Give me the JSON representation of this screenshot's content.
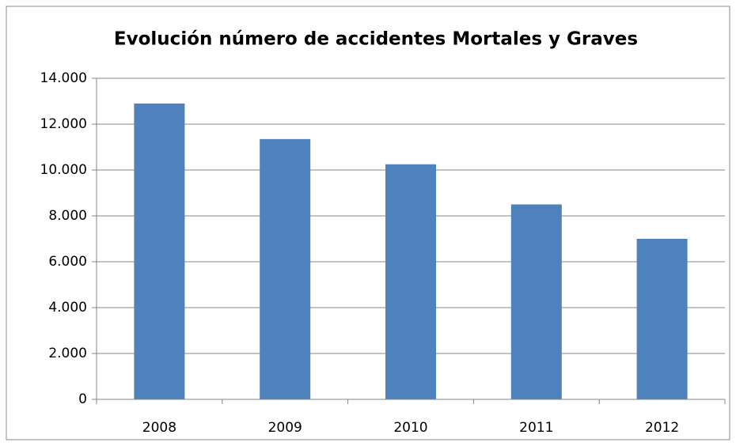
{
  "chart_data": {
    "type": "bar",
    "title": "Evolución número de accidentes Mortales y Graves",
    "categories": [
      "2008",
      "2009",
      "2010",
      "2011",
      "2012"
    ],
    "values": [
      12900,
      11350,
      10250,
      8500,
      7000
    ],
    "color": "#4f81bd",
    "ylim": [
      0,
      14000
    ],
    "yticks": [
      0,
      {
        "value": 2000,
        "label": "2.000"
      },
      {
        "value": 4000,
        "label": "4.000"
      },
      {
        "value": 6000,
        "label": "6.000"
      },
      {
        "value": 8000,
        "label": "8.000"
      },
      {
        "value": 10000,
        "label": "10.000"
      },
      {
        "value": 12000,
        "label": "12.000"
      },
      {
        "value": 14000,
        "label": "14.000"
      }
    ],
    "grid": true
  }
}
